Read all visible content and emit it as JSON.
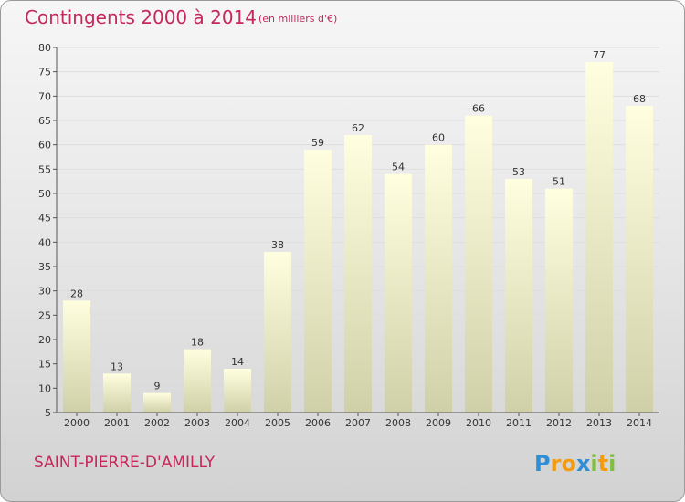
{
  "header": {
    "title": "Contingents 2000 à 2014",
    "subtitle": "(en milliers d'€)"
  },
  "footer": {
    "location": "SAINT-PIERRE-D'AMILLY",
    "logo_text": "Proxiti"
  },
  "colors": {
    "title": "#c5285a",
    "bar_top": "#ffffe0",
    "bar_bottom": "#d0d0a8",
    "grid": "#dedede",
    "axis": "#555555"
  },
  "chart_data": {
    "type": "bar",
    "title": "Contingents 2000 à 2014",
    "subtitle": "(en milliers d'€)",
    "categories": [
      "2000",
      "2001",
      "2002",
      "2003",
      "2004",
      "2005",
      "2006",
      "2007",
      "2008",
      "2009",
      "2010",
      "2011",
      "2012",
      "2013",
      "2014"
    ],
    "values": [
      28,
      13,
      9,
      18,
      14,
      38,
      59,
      62,
      54,
      60,
      66,
      53,
      51,
      77,
      68
    ],
    "ylim": [
      5,
      80
    ],
    "yticks": [
      5,
      10,
      15,
      20,
      25,
      30,
      35,
      40,
      45,
      50,
      55,
      60,
      65,
      70,
      75,
      80
    ],
    "grid": true,
    "xlabel": "",
    "ylabel": ""
  }
}
